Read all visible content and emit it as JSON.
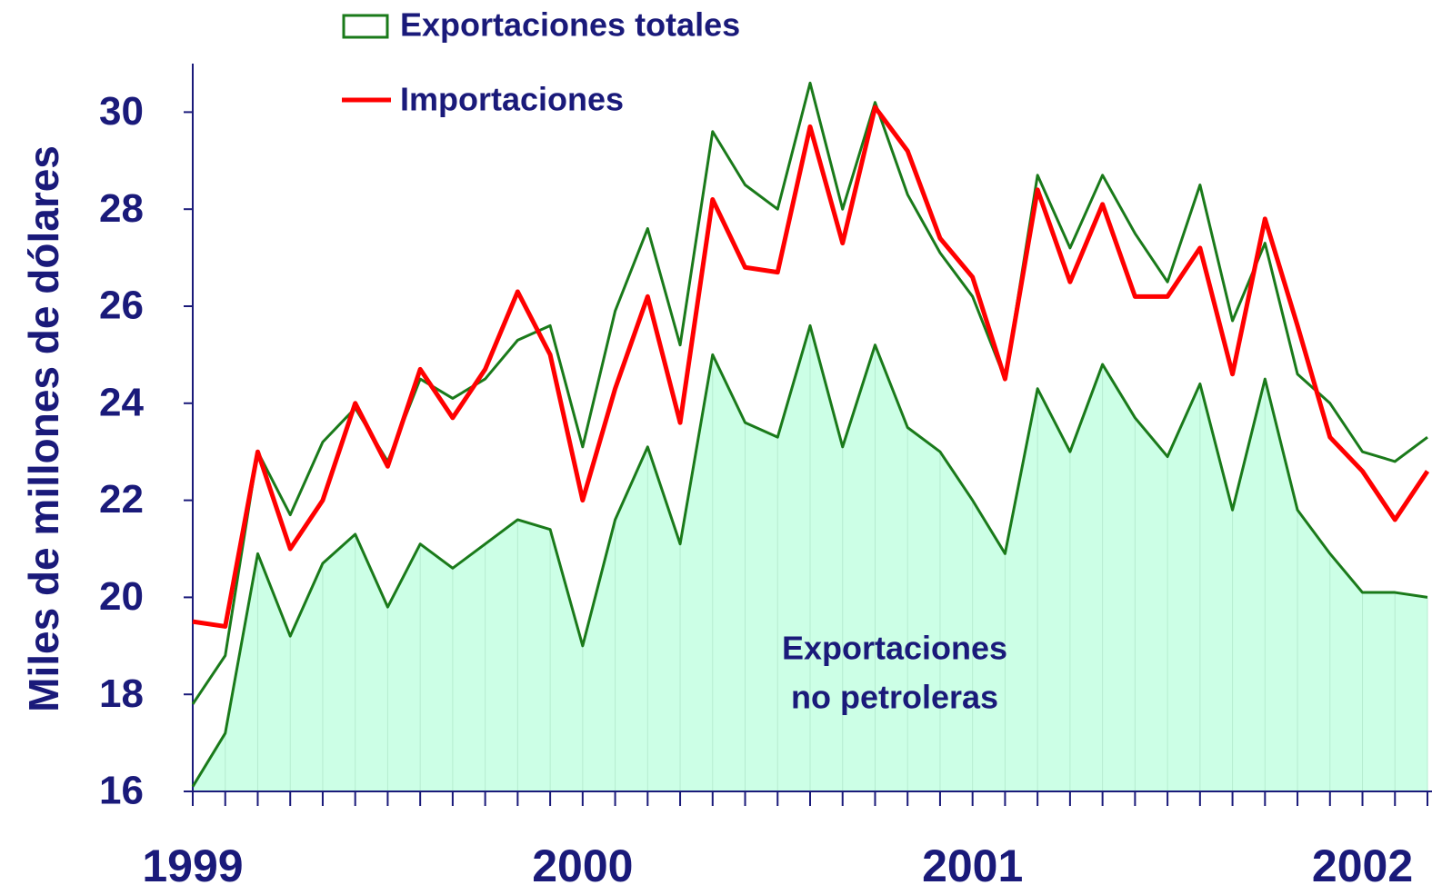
{
  "chart_data": {
    "type": "line",
    "y_label": "Miles de millones de dólares",
    "categories": [
      "1999",
      null,
      null,
      null,
      null,
      null,
      null,
      null,
      null,
      null,
      null,
      null,
      "2000",
      null,
      null,
      null,
      null,
      null,
      null,
      null,
      null,
      null,
      null,
      null,
      "2001",
      null,
      null,
      null,
      null,
      null,
      null,
      null,
      null,
      null,
      null,
      null,
      "2002",
      null,
      null
    ],
    "ylim": [
      16,
      31
    ],
    "yticks": [
      16,
      18,
      20,
      22,
      24,
      26,
      28,
      30
    ],
    "series": [
      {
        "name": "Exportaciones totales",
        "color": "#1a7a1a",
        "legend_mark": "box",
        "values": [
          17.8,
          18.8,
          23.0,
          21.7,
          23.2,
          23.9,
          22.8,
          24.5,
          24.1,
          24.5,
          25.3,
          25.6,
          23.1,
          25.9,
          27.6,
          25.2,
          29.6,
          28.5,
          28.0,
          30.6,
          28.0,
          30.2,
          28.3,
          27.1,
          26.2,
          24.5,
          28.7,
          27.2,
          28.7,
          27.5,
          26.5,
          28.5,
          25.7,
          27.3,
          24.6,
          24.0,
          23.0,
          22.8,
          23.3
        ]
      },
      {
        "name": "Importaciones",
        "color": "#ff0000",
        "legend_mark": "line",
        "values": [
          19.5,
          19.4,
          23.0,
          21.0,
          22.0,
          24.0,
          22.7,
          24.7,
          23.7,
          24.7,
          26.3,
          25.0,
          22.0,
          24.3,
          26.2,
          23.6,
          28.2,
          26.8,
          26.7,
          29.7,
          27.3,
          30.1,
          29.2,
          27.4,
          26.6,
          24.5,
          28.4,
          26.5,
          28.1,
          26.2,
          26.2,
          27.2,
          24.6,
          27.8,
          25.6,
          23.3,
          22.6,
          21.6,
          22.6
        ]
      },
      {
        "color": "#1a7a1a",
        "fill": "#ccffe6",
        "annotation": [
          "Exportaciones",
          "no petroleras"
        ],
        "values": [
          16.1,
          17.2,
          20.9,
          19.2,
          20.7,
          21.3,
          19.8,
          21.1,
          20.6,
          21.1,
          21.6,
          21.4,
          19.0,
          21.6,
          23.1,
          21.1,
          25.0,
          23.6,
          23.3,
          25.6,
          23.1,
          25.2,
          23.5,
          23.0,
          22.0,
          20.9,
          24.3,
          23.0,
          24.8,
          23.7,
          22.9,
          24.4,
          21.8,
          24.5,
          21.8,
          20.9,
          20.1,
          20.1,
          20.0
        ]
      }
    ]
  }
}
